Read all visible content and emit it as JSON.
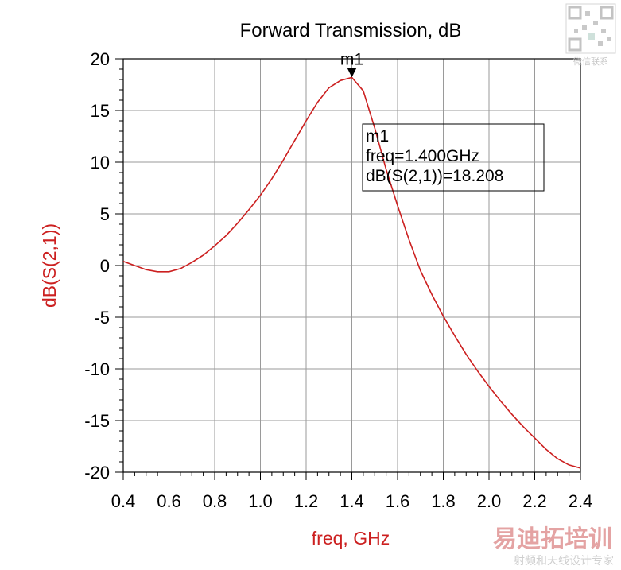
{
  "chart_data": {
    "type": "line",
    "title": "Forward Transmission, dB",
    "xlabel": "freq, GHz",
    "ylabel": "dB(S(2,1))",
    "xlim": [
      0.4,
      2.4
    ],
    "ylim": [
      -20,
      20
    ],
    "xticks": [
      "0.4",
      "0.6",
      "0.8",
      "1.0",
      "1.2",
      "1.4",
      "1.6",
      "1.8",
      "2.0",
      "2.2",
      "2.4"
    ],
    "yticks": [
      "20",
      "15",
      "10",
      "5",
      "0",
      "-5",
      "-10",
      "-15",
      "-20"
    ],
    "grid": true,
    "series": [
      {
        "color": "#cc2020",
        "x": [
          0.4,
          0.45,
          0.5,
          0.55,
          0.6,
          0.65,
          0.7,
          0.75,
          0.8,
          0.85,
          0.9,
          0.95,
          1.0,
          1.05,
          1.1,
          1.15,
          1.2,
          1.25,
          1.3,
          1.35,
          1.4,
          1.45,
          1.5,
          1.55,
          1.6,
          1.65,
          1.7,
          1.75,
          1.8,
          1.85,
          1.9,
          1.95,
          2.0,
          2.05,
          2.1,
          2.15,
          2.2,
          2.25,
          2.3,
          2.35,
          2.4
        ],
        "y": [
          0.4,
          0.0,
          -0.4,
          -0.6,
          -0.6,
          -0.3,
          0.3,
          1.0,
          1.9,
          2.9,
          4.1,
          5.4,
          6.8,
          8.4,
          10.2,
          12.1,
          14.0,
          15.8,
          17.2,
          17.9,
          18.2,
          16.9,
          13.3,
          9.3,
          5.8,
          2.5,
          -0.5,
          -2.8,
          -4.9,
          -6.8,
          -8.6,
          -10.2,
          -11.7,
          -13.1,
          -14.4,
          -15.6,
          -16.7,
          -17.8,
          -18.7,
          -19.3,
          -19.6
        ]
      }
    ],
    "marker": {
      "name": "m1",
      "x": 1.4,
      "y": 18.208,
      "box_lines": [
        "m1",
        "freq=1.400GHz",
        "dB(S(2,1))=18.208"
      ]
    }
  },
  "watermark": {
    "brand": "易迪拓培训",
    "tagline": "射频和天线设计专家",
    "qr_caption": "微信联系"
  },
  "colors": {
    "series": "#cc2020",
    "ylabel": "#cc2020",
    "xlabel": "#cc2020",
    "grid": "#9a9a9a",
    "axes": "#000000",
    "watermark_brand": "#e4a3a3",
    "watermark_tagline": "#cfcfcf"
  }
}
